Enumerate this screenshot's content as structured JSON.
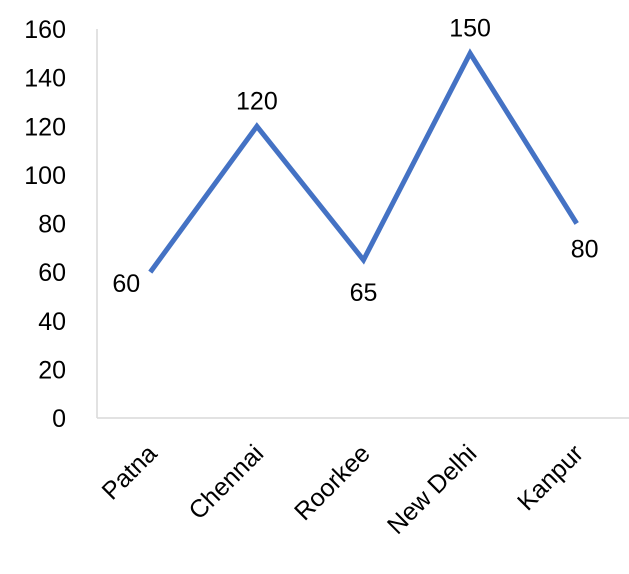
{
  "chart_data": {
    "type": "line",
    "categories": [
      "Patna",
      "Chennai",
      "Roorkee",
      "New Delhi",
      "Kanpur"
    ],
    "series": [
      {
        "values": [
          60,
          120,
          65,
          150,
          80
        ],
        "color": "#4472C4"
      }
    ],
    "data_labels": [
      "60",
      "120",
      "65",
      "150",
      "80"
    ],
    "y_ticks": [
      "0",
      "20",
      "40",
      "60",
      "80",
      "100",
      "120",
      "140",
      "160"
    ],
    "ylim": [
      0,
      160
    ],
    "axis_color": "#D9D9D9",
    "grid": false,
    "legend": "none"
  }
}
